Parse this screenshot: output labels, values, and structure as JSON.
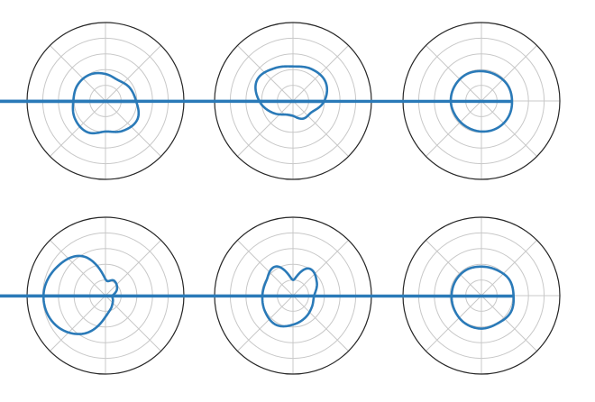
{
  "figure": {
    "colors": {
      "line": "#2a7ab8",
      "frame": "#262626",
      "grid": "#c8c8c8",
      "background": "#ffffff"
    }
  },
  "chart_data": [
    {
      "type": "line",
      "polar": true,
      "rmax": 5,
      "rings": [
        1,
        2,
        3,
        4
      ],
      "spokes_deg": [
        0,
        45,
        90,
        135,
        180,
        225,
        270,
        315
      ],
      "grid": true,
      "series": [
        {
          "theta_deg": [
            0,
            30,
            60,
            90,
            120,
            150,
            180,
            210,
            240,
            270,
            300,
            330
          ],
          "r": [
            1.95,
            1.75,
            1.55,
            1.72,
            1.95,
            2.05,
            2.05,
            2.25,
            2.3,
            1.95,
            2.2,
            2.35
          ]
        }
      ]
    },
    {
      "type": "line",
      "polar": true,
      "rmax": 5,
      "rings": [
        1,
        2,
        3,
        4
      ],
      "spokes_deg": [
        0,
        45,
        90,
        135,
        180,
        225,
        270,
        315
      ],
      "grid": true,
      "series": [
        {
          "theta_deg": [
            0,
            30,
            60,
            90,
            120,
            150,
            180,
            210,
            240,
            270,
            300,
            330
          ],
          "r": [
            2.0,
            2.4,
            2.35,
            2.2,
            2.4,
            2.65,
            2.15,
            1.5,
            1.0,
            0.95,
            1.3,
            1.4
          ]
        }
      ]
    },
    {
      "type": "line",
      "polar": true,
      "rmax": 5,
      "rings": [
        1,
        2,
        3,
        4
      ],
      "spokes_deg": [
        0,
        45,
        90,
        135,
        180,
        225,
        270,
        315
      ],
      "grid": true,
      "series": [
        {
          "theta_deg": [
            0,
            30,
            60,
            90,
            120,
            150,
            180,
            210,
            240,
            270,
            300,
            330
          ],
          "r": [
            1.95,
            1.95,
            1.9,
            1.9,
            1.95,
            1.95,
            1.95,
            1.9,
            1.9,
            1.95,
            2.0,
            2.0
          ]
        }
      ]
    },
    {
      "type": "line",
      "polar": true,
      "rmax": 5,
      "rings": [
        1,
        2,
        3,
        4
      ],
      "spokes_deg": [
        0,
        45,
        90,
        135,
        180,
        225,
        270,
        315
      ],
      "grid": true,
      "series": [
        {
          "theta_deg": [
            0,
            30,
            60,
            90,
            120,
            150,
            180,
            210,
            240,
            270,
            300,
            330
          ],
          "r": [
            0.45,
            0.85,
            1.1,
            1.05,
            2.9,
            3.6,
            3.95,
            3.7,
            2.8,
            1.35,
            0.8,
            0.55
          ]
        }
      ]
    },
    {
      "type": "line",
      "polar": true,
      "rmax": 5,
      "rings": [
        1,
        2,
        3,
        4
      ],
      "spokes_deg": [
        0,
        45,
        90,
        135,
        180,
        225,
        270,
        315
      ],
      "grid": true,
      "series": [
        {
          "theta_deg": [
            0,
            30,
            60,
            90,
            120,
            150,
            180,
            210,
            240,
            270,
            300,
            330
          ],
          "r": [
            1.35,
            1.75,
            2.0,
            1.0,
            2.15,
            1.95,
            1.95,
            2.05,
            2.15,
            1.85,
            1.6,
            1.4
          ]
        }
      ]
    },
    {
      "type": "line",
      "polar": true,
      "rmax": 5,
      "rings": [
        1,
        2,
        3,
        4
      ],
      "spokes_deg": [
        0,
        45,
        90,
        135,
        180,
        225,
        270,
        315
      ],
      "grid": true,
      "series": [
        {
          "theta_deg": [
            0,
            30,
            60,
            90,
            120,
            150,
            180,
            210,
            240,
            270,
            300,
            330
          ],
          "r": [
            2.05,
            2.05,
            1.9,
            1.85,
            1.9,
            1.9,
            1.9,
            1.95,
            2.05,
            2.1,
            2.05,
            2.15
          ]
        }
      ]
    }
  ]
}
